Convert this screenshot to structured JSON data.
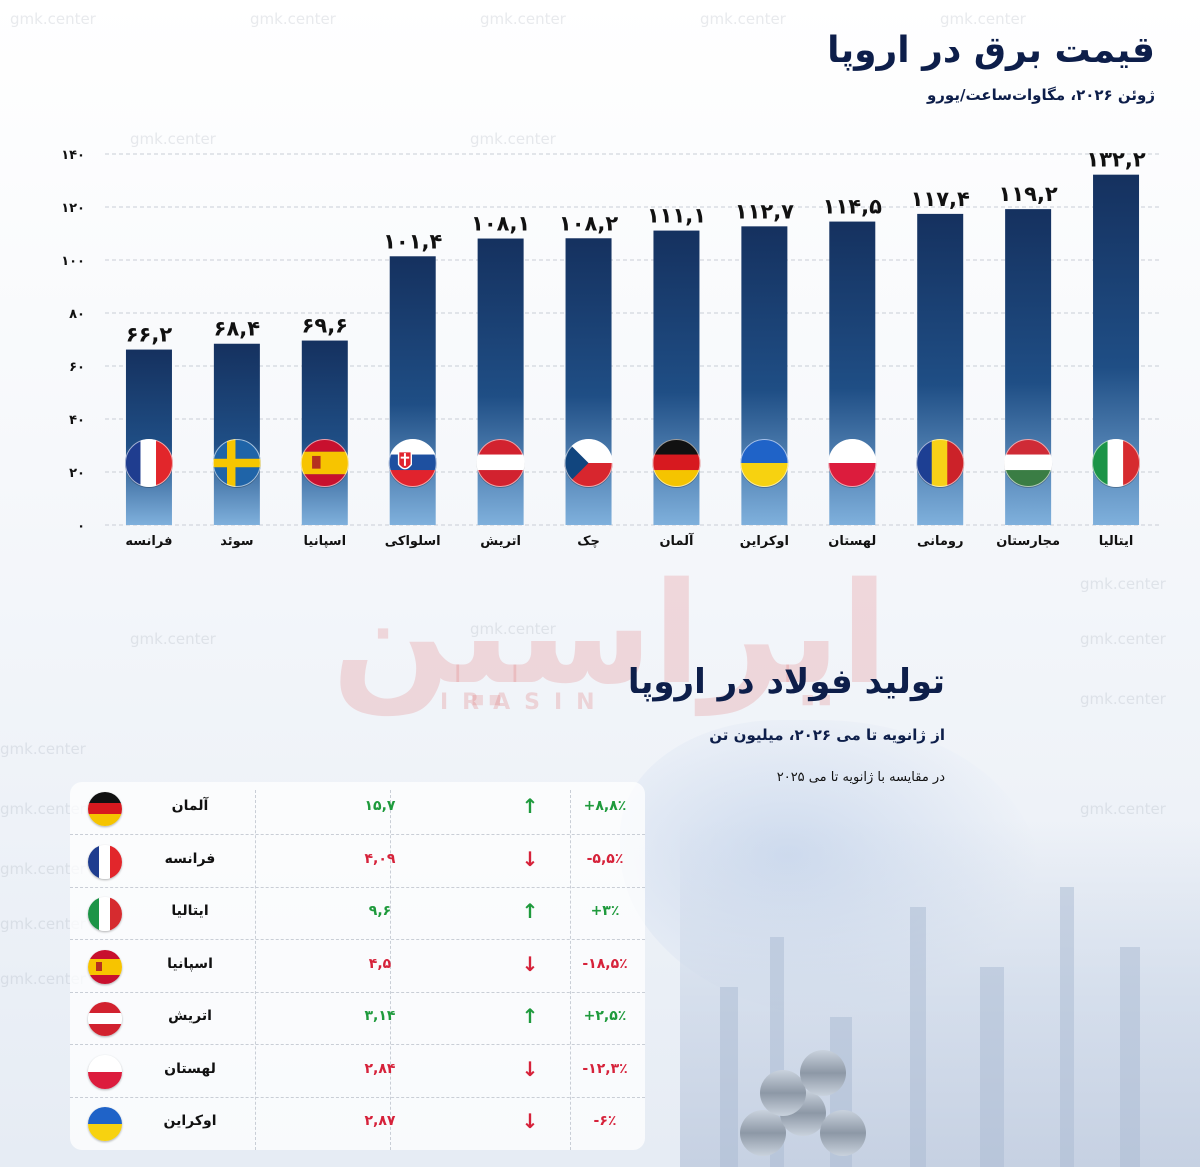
{
  "colors": {
    "bar_top": "#15315f",
    "bar_bottom": "#6fa1cf",
    "title": "#0d1e4a",
    "up": "#1e9a3c",
    "down": "#d6223a"
  },
  "electricity": {
    "title": "قیمت برق در اروپا",
    "subtitle": "ژوئن ۲۰۲۶، مگاوات‌ساعت/یورو"
  },
  "chart_data": {
    "type": "bar",
    "title": "قیمت برق در اروپا",
    "subtitle": "ژوئن ۲۰۲۶، مگاوات‌ساعت/یورو",
    "categories": [
      "فرانسه",
      "سوئد",
      "اسپانیا",
      "اسلواکی",
      "اتریش",
      "چک",
      "آلمان",
      "اوکراین",
      "لهستان",
      "رومانی",
      "مجارستان",
      "ایتالیا"
    ],
    "values": [
      66.2,
      68.4,
      69.6,
      101.4,
      108.1,
      108.2,
      111.1,
      112.7,
      114.5,
      117.4,
      119.2,
      132.2
    ],
    "value_labels": [
      "۶۶,۲",
      "۶۸,۴",
      "۶۹,۶",
      "۱۰۱,۴",
      "۱۰۸,۱",
      "۱۰۸,۲",
      "۱۱۱,۱",
      "۱۱۲,۷",
      "۱۱۴,۵",
      "۱۱۷,۴",
      "۱۱۹,۲",
      "۱۳۲,۲"
    ],
    "flags": [
      "france",
      "sweden",
      "spain",
      "slovakia",
      "austria",
      "czech",
      "germany",
      "ukraine",
      "poland",
      "romania",
      "hungary",
      "italy"
    ],
    "ylim": [
      0,
      140
    ],
    "yticks": [
      0,
      20,
      40,
      60,
      80,
      100,
      120,
      140
    ],
    "ytick_labels": [
      "۰",
      "۲۰",
      "۴۰",
      "۶۰",
      "۸۰",
      "۱۰۰",
      "۱۲۰",
      "۱۴۰"
    ],
    "grid": true
  },
  "steel": {
    "title": "تولید فولاد در اروپا",
    "subtitle": "از ژانویه تا می ۲۰۲۶، میلیون تن",
    "note": "در مقایسه با ژانویه تا می ۲۰۲۵",
    "rows": [
      {
        "country": "آلمان",
        "flag": "germany",
        "value": "۱۵,۷",
        "dir": "up",
        "pct": "+۸,۸٪"
      },
      {
        "country": "فرانسه",
        "flag": "france",
        "value": "۴,۰۹",
        "dir": "down",
        "pct": "-۵,۵٪"
      },
      {
        "country": "ایتالیا",
        "flag": "italy",
        "value": "۹,۶",
        "dir": "up",
        "pct": "+۳٪"
      },
      {
        "country": "اسپانیا",
        "flag": "spain",
        "value": "۴,۵",
        "dir": "down",
        "pct": "-۱۸,۵٪"
      },
      {
        "country": "اتریش",
        "flag": "austria",
        "value": "۳,۱۴",
        "dir": "up",
        "pct": "+۲,۵٪"
      },
      {
        "country": "لهستان",
        "flag": "poland",
        "value": "۲,۸۴",
        "dir": "down",
        "pct": "-۱۲,۳٪"
      },
      {
        "country": "اوکراین",
        "flag": "ukraine",
        "value": "۲,۸۷",
        "dir": "down",
        "pct": "-۶٪"
      }
    ]
  },
  "watermark": {
    "site": "gmk.center",
    "logo": "ایراسین",
    "logo_sub": "IRASIN"
  }
}
